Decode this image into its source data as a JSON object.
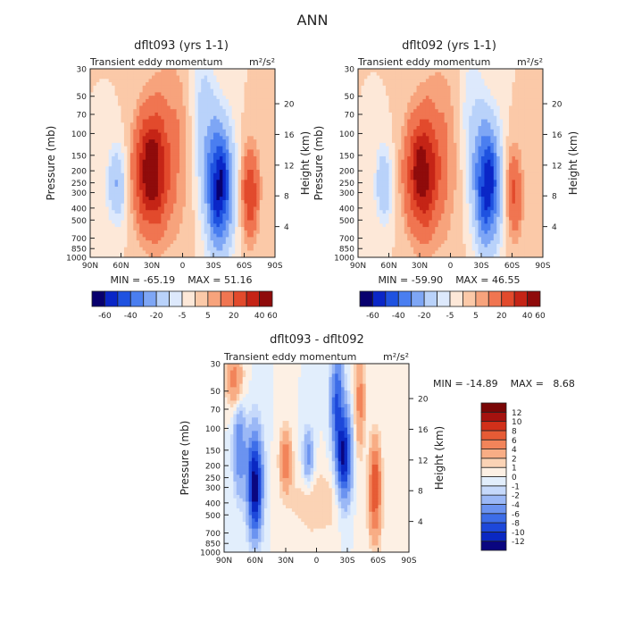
{
  "page": {
    "title": "ANN"
  },
  "palettes": {
    "full": [
      "#08006e",
      "#0a26c7",
      "#1f52e0",
      "#4a7ef0",
      "#7ea6f5",
      "#b9d2fa",
      "#dde9fc",
      "#fde8d8",
      "#fbc9a8",
      "#f7a37c",
      "#f07551",
      "#e24a2c",
      "#c52416",
      "#8f0b0b"
    ],
    "diff": [
      "#0a0680",
      "#0a28c2",
      "#1d48da",
      "#3d6de8",
      "#6b93f0",
      "#9bb8f6",
      "#c6d9fb",
      "#e2eefc",
      "#fdf0e4",
      "#fbd3b5",
      "#f8ad85",
      "#f2845a",
      "#e65b35",
      "#d1301a",
      "#a5120f",
      "#7a0606"
    ]
  },
  "chart_data": [
    {
      "id": "dflt093",
      "type": "heatmap",
      "title": "dflt093 (yrs 1-1)",
      "left_label": "Transient eddy momentum",
      "units": "m²/s²",
      "ylabel": "Pressure (mb)",
      "y2label": "Height (km)",
      "xticks": [
        "90N",
        "60N",
        "30N",
        "0",
        "30S",
        "60S",
        "90S"
      ],
      "yticks": [
        "30",
        "50",
        "70",
        "100",
        "150",
        "200",
        "250",
        "300",
        "400",
        "500",
        "700",
        "850",
        "1000"
      ],
      "y2ticks": [
        "20",
        "16",
        "12",
        "8",
        "4"
      ],
      "ylim": [
        1000,
        30
      ],
      "xlim": [
        90,
        -90
      ],
      "min_text": "MIN = -65.19",
      "max_text": "MAX = 51.16",
      "colorbar_ticks": [
        "-60",
        "-40",
        "-20",
        "-5",
        "5",
        "20",
        "40",
        "60"
      ],
      "colorbar_levels": [
        -70,
        -60,
        -50,
        -40,
        -30,
        -20,
        -10,
        -5,
        0,
        5,
        10,
        20,
        30,
        40,
        50,
        60
      ],
      "features": [
        {
          "lat": 31,
          "p": 200,
          "amp": 50,
          "wlat": 15,
          "wp": 1.0
        },
        {
          "lat": -36,
          "p": 270,
          "amp": -62,
          "wlat": 12,
          "wp": 1.1
        },
        {
          "lat": 64,
          "p": 260,
          "amp": -20,
          "wlat": 9,
          "wp": 0.7
        },
        {
          "lat": -66,
          "p": 300,
          "amp": 30,
          "wlat": 8,
          "wp": 0.8
        },
        {
          "lat": 10,
          "p": 130,
          "amp": 10,
          "wlat": 22,
          "wp": 1.8
        },
        {
          "lat": -20,
          "p": 80,
          "amp": -14,
          "wlat": 12,
          "wp": 1.5
        }
      ]
    },
    {
      "id": "dflt092",
      "type": "heatmap",
      "title": "dflt092 (yrs 1-1)",
      "left_label": "Transient eddy momentum",
      "units": "m²/s²",
      "ylabel": "Pressure (mb)",
      "y2label": "Height (km)",
      "xticks": [
        "90N",
        "60N",
        "30N",
        "0",
        "30S",
        "60S",
        "90S"
      ],
      "yticks": [
        "30",
        "50",
        "70",
        "100",
        "150",
        "200",
        "250",
        "300",
        "400",
        "500",
        "700",
        "850",
        "1000"
      ],
      "y2ticks": [
        "20",
        "16",
        "12",
        "8",
        "4"
      ],
      "ylim": [
        1000,
        30
      ],
      "xlim": [
        90,
        -90
      ],
      "min_text": "MIN = -59.90",
      "max_text": "MAX = 46.55",
      "colorbar_ticks": [
        "-60",
        "-40",
        "-20",
        "-5",
        "5",
        "20",
        "40",
        "60"
      ],
      "colorbar_levels": [
        -70,
        -60,
        -50,
        -40,
        -30,
        -20,
        -10,
        -5,
        0,
        5,
        10,
        20,
        30,
        40,
        50,
        60
      ],
      "features": [
        {
          "lat": 28,
          "p": 210,
          "amp": 45,
          "wlat": 15,
          "wp": 1.0
        },
        {
          "lat": -36,
          "p": 260,
          "amp": -58,
          "wlat": 12,
          "wp": 1.1
        },
        {
          "lat": 65,
          "p": 260,
          "amp": -18,
          "wlat": 8,
          "wp": 0.7
        },
        {
          "lat": -62,
          "p": 300,
          "amp": 22,
          "wlat": 8,
          "wp": 0.8
        },
        {
          "lat": 8,
          "p": 140,
          "amp": 9,
          "wlat": 22,
          "wp": 1.8
        },
        {
          "lat": -20,
          "p": 80,
          "amp": -10,
          "wlat": 12,
          "wp": 1.5
        }
      ]
    },
    {
      "id": "diff",
      "type": "heatmap",
      "title": "dflt093 - dflt092",
      "left_label": "Transient eddy momentum",
      "units": "m²/s²",
      "ylabel": "Pressure (mb)",
      "y2label": "Height (km)",
      "xticks": [
        "90N",
        "60N",
        "30N",
        "0",
        "30S",
        "60S",
        "90S"
      ],
      "yticks": [
        "30",
        "50",
        "70",
        "100",
        "150",
        "200",
        "250",
        "300",
        "400",
        "500",
        "700",
        "850",
        "1000"
      ],
      "y2ticks": [
        "20",
        "16",
        "12",
        "8",
        "4"
      ],
      "ylim": [
        1000,
        30
      ],
      "xlim": [
        90,
        -90
      ],
      "min_text": "MIN = -14.89",
      "max_text": "MAX =   8.68",
      "colorbar_ticks": [
        "12",
        "10",
        "8",
        "6",
        "4",
        "2",
        "1",
        "0",
        "-1",
        "-2",
        "-4",
        "-6",
        "-8",
        "-10",
        "-12"
      ],
      "colorbar_levels": [
        -14,
        -12,
        -10,
        -8,
        -6,
        -4,
        -2,
        -1,
        0,
        1,
        2,
        4,
        6,
        8,
        10,
        12
      ],
      "features": [
        {
          "lat": 60,
          "p": 280,
          "amp": -14,
          "wlat": 7,
          "wp": 0.9
        },
        {
          "lat": 75,
          "p": 150,
          "amp": -6,
          "wlat": 6,
          "wp": 0.8
        },
        {
          "lat": 80,
          "p": 40,
          "amp": 5,
          "wlat": 8,
          "wp": 0.5
        },
        {
          "lat": 30,
          "p": 180,
          "amp": 5,
          "wlat": 6,
          "wp": 0.6
        },
        {
          "lat": 8,
          "p": 170,
          "amp": -5,
          "wlat": 5,
          "wp": 0.5
        },
        {
          "lat": -27,
          "p": 170,
          "amp": -12,
          "wlat": 7,
          "wp": 0.8
        },
        {
          "lat": -20,
          "p": 60,
          "amp": -8,
          "wlat": 6,
          "wp": 0.9
        },
        {
          "lat": -42,
          "p": 60,
          "amp": 5,
          "wlat": 5,
          "wp": 0.9
        },
        {
          "lat": -57,
          "p": 320,
          "amp": 8,
          "wlat": 6,
          "wp": 0.9
        },
        {
          "lat": 0,
          "p": 400,
          "amp": 2,
          "wlat": 25,
          "wp": 0.6
        }
      ]
    }
  ]
}
